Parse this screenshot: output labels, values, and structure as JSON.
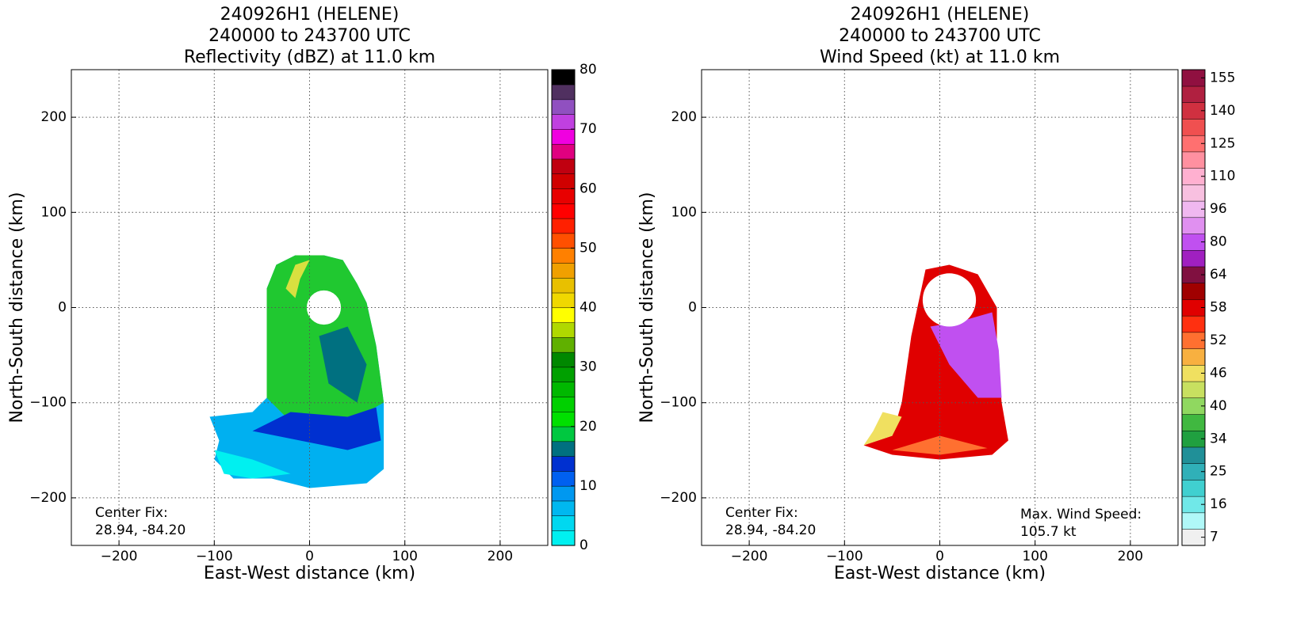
{
  "chart_data": [
    {
      "type": "field",
      "title": [
        "240926H1 (HELENE)",
        "240000 to 243700 UTC",
        "Reflectivity (dBZ) at 11.0 km"
      ],
      "xlabel": "East-West distance (km)",
      "ylabel": "North-South distance (km)",
      "xlim": [
        -250,
        250
      ],
      "ylim": [
        -250,
        250
      ],
      "xticks": [
        {
          "value": -200,
          "label": "−200"
        },
        {
          "value": -100,
          "label": "−100"
        },
        0,
        100,
        200
      ],
      "yticks": [
        {
          "value": -200,
          "label": "−200"
        },
        {
          "value": -100,
          "label": "−100"
        },
        0,
        100,
        200
      ],
      "grid": true,
      "annotations": [
        [
          "Center Fix:",
          "28.94, -84.20"
        ]
      ],
      "colorbar": {
        "lim": [
          0,
          80
        ],
        "ticks": [
          0,
          10,
          20,
          30,
          40,
          50,
          60,
          70,
          80
        ],
        "colors": [
          "#00f0f0",
          "#00d8f0",
          "#00b8f0",
          "#0098f0",
          "#0060f0",
          "#0030d0",
          "#007080",
          "#00c840",
          "#00e000",
          "#00d000",
          "#00b800",
          "#00a000",
          "#008800",
          "#60b000",
          "#b0d800",
          "#ffff00",
          "#f0d800",
          "#e8c000",
          "#f0a000",
          "#ff8000",
          "#ff5000",
          "#ff2000",
          "#ff0000",
          "#e80000",
          "#d00000",
          "#c00010",
          "#e00080",
          "#f000e0",
          "#c040e0",
          "#9050c0",
          "#503060",
          "#000000"
        ]
      }
    },
    {
      "type": "field",
      "title": [
        "240926H1 (HELENE)",
        "240000 to 243700 UTC",
        "Wind Speed (kt) at 11.0 km"
      ],
      "xlabel": "East-West distance (km)",
      "ylabel": "North-South distance (km)",
      "xlim": [
        -250,
        250
      ],
      "ylim": [
        -250,
        250
      ],
      "xticks": [
        {
          "value": -200,
          "label": "−200"
        },
        {
          "value": -100,
          "label": "−100"
        },
        0,
        100,
        200
      ],
      "yticks": [
        {
          "value": -200,
          "label": "−200"
        },
        {
          "value": -100,
          "label": "−100"
        },
        0,
        100,
        200
      ],
      "grid": true,
      "annotations": [
        [
          "Center Fix:",
          "28.94, -84.20"
        ],
        [
          "Max. Wind Speed:",
          "105.7 kt"
        ]
      ],
      "colorbar": {
        "ticks": [
          7,
          16,
          25,
          34,
          40,
          46,
          52,
          58,
          64,
          80,
          96,
          110,
          125,
          140,
          155
        ],
        "colors": [
          "#f0f0f0",
          "#b0f8f8",
          "#70e8e8",
          "#40d0d0",
          "#30b0b8",
          "#209098",
          "#20a040",
          "#40b840",
          "#90d860",
          "#c8e060",
          "#f0e060",
          "#f8b040",
          "#ff7030",
          "#ff3010",
          "#e00000",
          "#a00000",
          "#801040",
          "#a020c0",
          "#c050f0",
          "#e090f0",
          "#f0b8f0",
          "#f8c0e0",
          "#ffb0d0",
          "#ff90a0",
          "#ff7070",
          "#f05050",
          "#d03040",
          "#b02040",
          "#901040"
        ]
      }
    }
  ]
}
